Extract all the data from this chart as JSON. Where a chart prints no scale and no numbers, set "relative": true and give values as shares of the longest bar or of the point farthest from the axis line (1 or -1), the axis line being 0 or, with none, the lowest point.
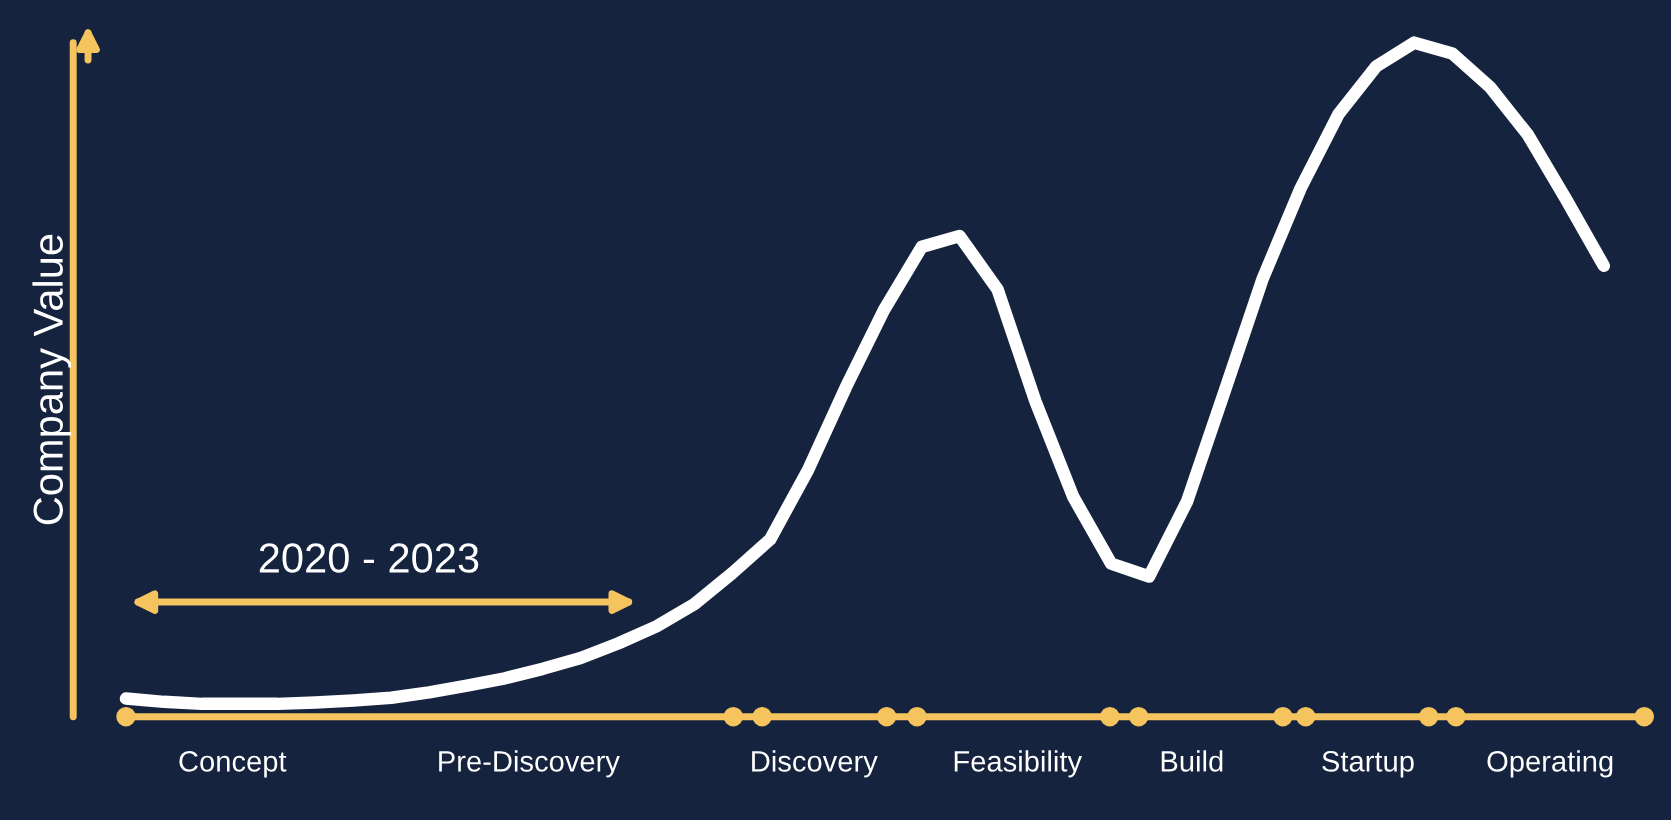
{
  "chart_data": {
    "type": "line",
    "relative": true,
    "ylabel": "Company Value",
    "annotations": [
      "2020 - 2023",
      "Concept",
      "Pre-Discovery",
      "Discovery",
      "Feasibility",
      "Build",
      "Startup",
      "Operating"
    ],
    "categories": [
      null,
      null,
      null,
      null,
      null,
      null,
      null,
      null,
      null,
      null,
      null,
      null,
      null,
      null,
      null,
      null,
      null,
      null,
      null,
      null,
      null,
      null,
      null,
      null,
      null,
      null,
      null,
      null,
      null,
      null,
      null,
      null,
      null,
      null,
      null,
      null,
      null,
      null,
      null,
      null
    ],
    "series": [
      {
        "color": "#ffffff",
        "values": [
          0.027,
          0.022,
          0.019,
          0.019,
          0.019,
          0.021,
          0.024,
          0.028,
          0.036,
          0.046,
          0.057,
          0.071,
          0.087,
          0.109,
          0.134,
          0.167,
          0.213,
          0.263,
          0.366,
          0.489,
          0.603,
          0.697,
          0.713,
          0.634,
          0.468,
          0.326,
          0.227,
          0.208,
          0.319,
          0.484,
          0.65,
          0.784,
          0.894,
          0.965,
          1,
          0.984,
          0.934,
          0.863,
          0.768,
          0.669
        ]
      }
    ],
    "grid": false,
    "legend": false,
    "line_style": "solid"
  }
}
